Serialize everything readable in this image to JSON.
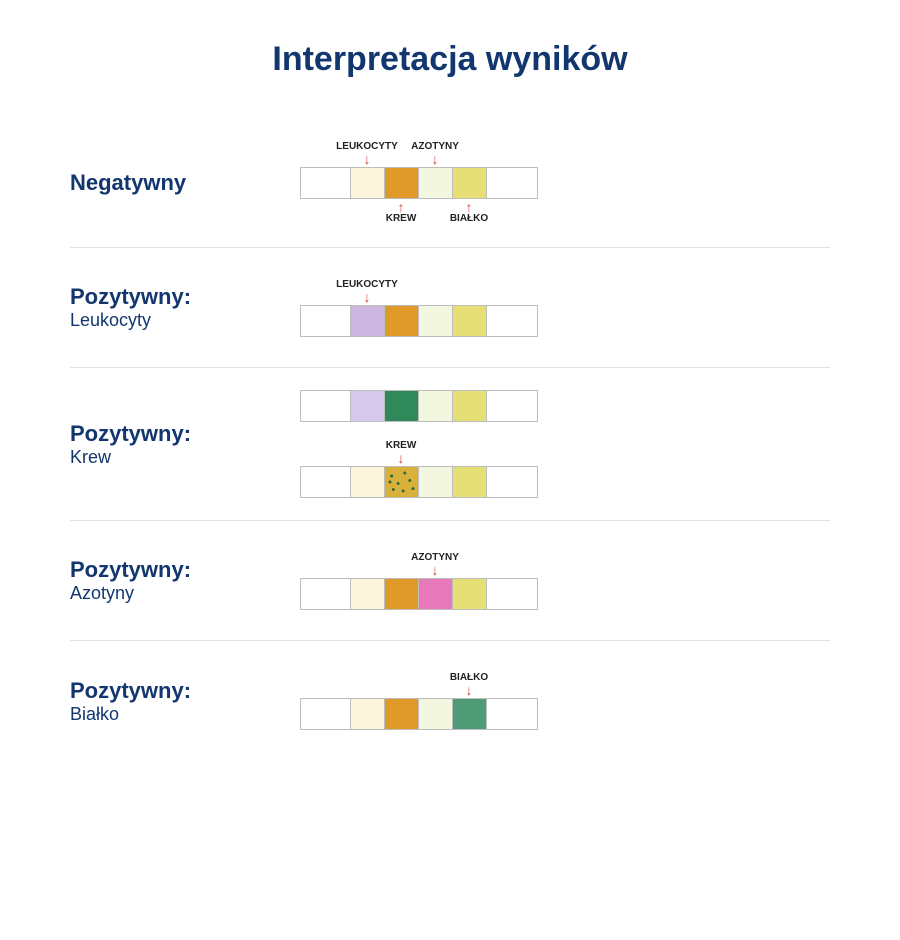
{
  "title": "Interpretacja wyników",
  "title_color": "#12376f",
  "title_fontsize": 34,
  "label_color": "#12376f",
  "label_fontsize_title": 22,
  "label_fontsize_sub": 18,
  "annot_text_color": "#222222",
  "annot_arrow_color": "#d8463b",
  "annot_fontsize": 10,
  "divider_color": "#e2e2e2",
  "strip_border_color": "#bdbdbd",
  "strip_height": 32,
  "pad_width_end": 50,
  "pad_width": 34,
  "rows": [
    {
      "title": "Negatywny",
      "sub": "",
      "strips": [
        {
          "pads": [
            {
              "type": "end"
            },
            {
              "color": "#fcf4dd"
            },
            {
              "color": "#e09a2a"
            },
            {
              "color": "#f3f7e0"
            },
            {
              "color": "#e6df76"
            },
            {
              "type": "end"
            }
          ],
          "annotations": [
            {
              "text": "LEUKOCYTY",
              "pad_index": 1,
              "side": "top"
            },
            {
              "text": "AZOTYNY",
              "pad_index": 3,
              "side": "top"
            },
            {
              "text": "KREW",
              "pad_index": 2,
              "side": "bottom"
            },
            {
              "text": "BIAŁKO",
              "pad_index": 4,
              "side": "bottom"
            }
          ]
        }
      ]
    },
    {
      "title": "Pozytywny:",
      "sub": "Leukocyty",
      "strips": [
        {
          "pads": [
            {
              "type": "end"
            },
            {
              "color": "#cbb6e0"
            },
            {
              "color": "#e09a2a"
            },
            {
              "color": "#f3f7e0"
            },
            {
              "color": "#e6df76"
            },
            {
              "type": "end"
            }
          ],
          "annotations": [
            {
              "text": "LEUKOCYTY",
              "pad_index": 1,
              "side": "top"
            }
          ]
        }
      ]
    },
    {
      "title": "Pozytywny:",
      "sub": "Krew",
      "strips": [
        {
          "pads": [
            {
              "type": "end"
            },
            {
              "color": "#d6c8ea"
            },
            {
              "color": "#2f8a5b"
            },
            {
              "color": "#f3f7e0"
            },
            {
              "color": "#e6df76"
            },
            {
              "type": "end"
            }
          ],
          "annotations": []
        },
        {
          "pads": [
            {
              "type": "end"
            },
            {
              "color": "#fcf4dd"
            },
            {
              "color": "#d9b13a",
              "speckle": true
            },
            {
              "color": "#f3f7e0"
            },
            {
              "color": "#e6df76"
            },
            {
              "type": "end"
            }
          ],
          "annotations": [
            {
              "text": "KREW",
              "pad_index": 2,
              "side": "top"
            }
          ]
        }
      ]
    },
    {
      "title": "Pozytywny:",
      "sub": "Azotyny",
      "strips": [
        {
          "pads": [
            {
              "type": "end"
            },
            {
              "color": "#fcf4dd"
            },
            {
              "color": "#e09a2a"
            },
            {
              "color": "#e879b9"
            },
            {
              "color": "#e6df76"
            },
            {
              "type": "end"
            }
          ],
          "annotations": [
            {
              "text": "AZOTYNY",
              "pad_index": 3,
              "side": "top"
            }
          ]
        }
      ]
    },
    {
      "title": "Pozytywny:",
      "sub": "Białko",
      "strips": [
        {
          "pads": [
            {
              "type": "end"
            },
            {
              "color": "#fcf4dd"
            },
            {
              "color": "#e09a2a"
            },
            {
              "color": "#f3f7e0"
            },
            {
              "color": "#4f9a77"
            },
            {
              "type": "end"
            }
          ],
          "annotations": [
            {
              "text": "BIAŁKO",
              "pad_index": 4,
              "side": "top"
            }
          ]
        }
      ]
    }
  ]
}
